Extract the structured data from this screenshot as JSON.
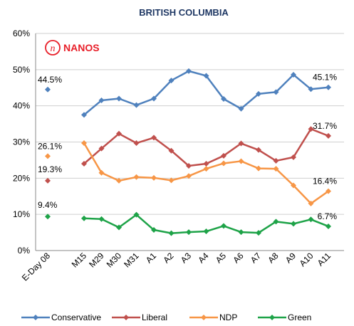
{
  "brand": {
    "name": "NANOS",
    "color": "#e8202a"
  },
  "chart_data": {
    "type": "line",
    "title": "BRITISH COLUMBIA",
    "xlabel": "",
    "ylabel": "",
    "ylim": [
      0,
      60
    ],
    "y_ticks": [
      "0%",
      "10%",
      "20%",
      "30%",
      "40%",
      "50%",
      "60%"
    ],
    "grid": true,
    "legend_position": "bottom",
    "baseline": {
      "category": "E-Day 08",
      "values": {
        "Conservative": 44.5,
        "Liberal": 19.3,
        "NDP": 26.1,
        "Green": 9.4
      },
      "labels": {
        "Conservative": "44.5%",
        "Liberal": "19.3%",
        "NDP": "26.1%",
        "Green": "9.4%"
      }
    },
    "categories": [
      "M15",
      "M29",
      "M30",
      "M31",
      "A1",
      "A2",
      "A3",
      "A4",
      "A5",
      "A6",
      "A7",
      "A8",
      "A9",
      "A10",
      "A11"
    ],
    "series": [
      {
        "name": "Conservative",
        "color": "#4f81bd",
        "values": [
          37.5,
          41.5,
          42.0,
          40.2,
          42.0,
          47.0,
          49.6,
          48.3,
          41.9,
          39.2,
          43.3,
          43.8,
          48.6,
          44.6,
          45.1
        ],
        "end_label": "45.1%"
      },
      {
        "name": "Liberal",
        "color": "#c0504d",
        "values": [
          24.0,
          28.2,
          32.3,
          29.7,
          31.2,
          27.6,
          23.4,
          24.0,
          26.2,
          29.6,
          27.8,
          24.8,
          25.8,
          33.6,
          31.7
        ],
        "end_label": "31.7%"
      },
      {
        "name": "NDP",
        "color": "#f79646",
        "values": [
          29.7,
          21.5,
          19.3,
          20.3,
          20.1,
          19.4,
          20.6,
          22.6,
          24.1,
          24.7,
          22.7,
          22.6,
          18.0,
          13.0,
          16.4
        ],
        "end_label": "16.4%"
      },
      {
        "name": "Green",
        "color": "#1ea348",
        "values": [
          8.9,
          8.7,
          6.4,
          9.9,
          5.7,
          4.8,
          5.1,
          5.3,
          6.8,
          5.1,
          4.9,
          8.0,
          7.4,
          8.6,
          6.7
        ],
        "end_label": "6.7%"
      }
    ]
  }
}
